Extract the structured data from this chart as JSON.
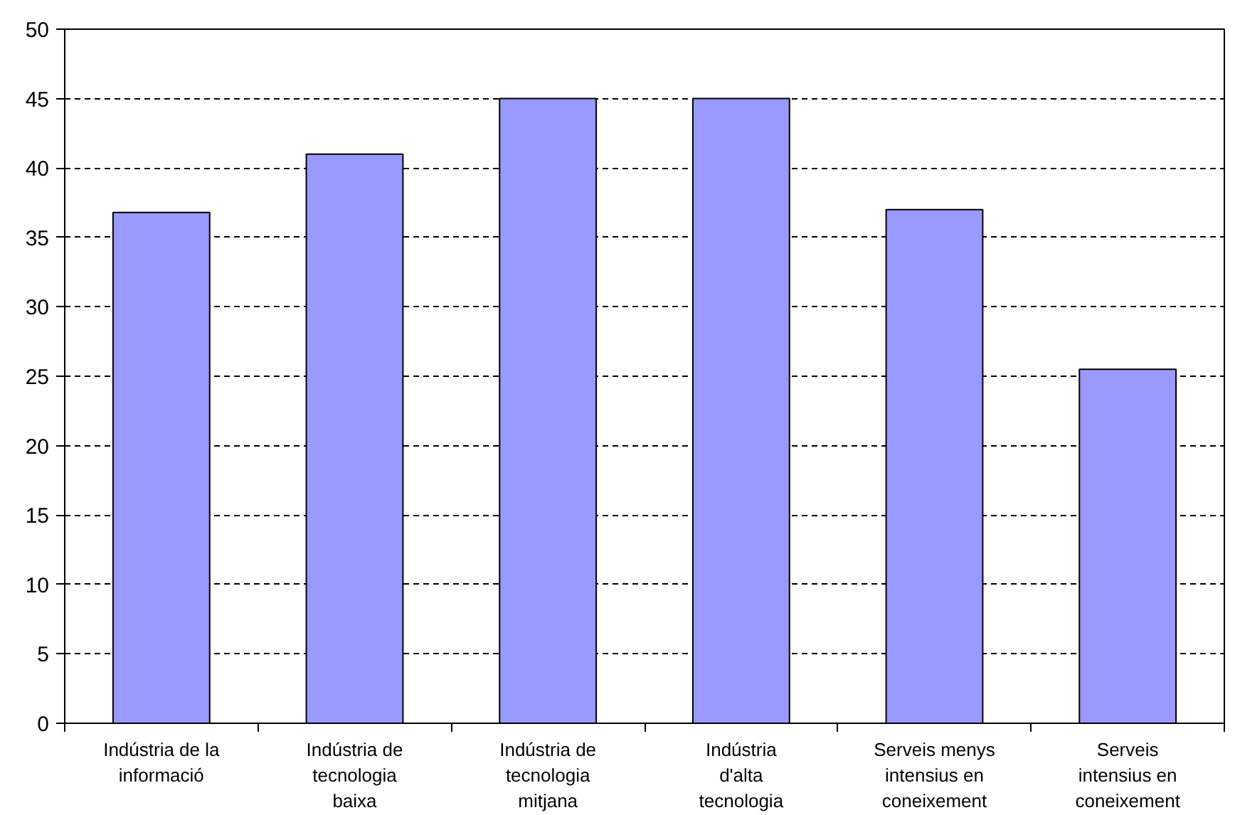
{
  "chart_data": {
    "type": "bar",
    "categories": [
      "Indústria de la informació",
      "Indústria de tecnologia baixa",
      "Indústria de tecnologia mitjana",
      "Indústria d'alta tecnologia",
      "Serveis menys intensius en coneixement",
      "Serveis intensius en coneixement"
    ],
    "values": [
      36.8,
      41.0,
      45.0,
      45.0,
      37.0,
      25.5
    ],
    "color": "#9999ff",
    "ylim": [
      0,
      50
    ],
    "yticks": [
      0,
      5,
      10,
      15,
      20,
      25,
      30,
      35,
      40,
      45,
      50
    ],
    "grid": "y"
  }
}
